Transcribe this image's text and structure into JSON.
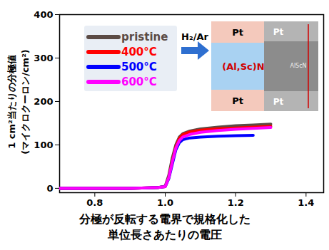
{
  "chart_data": {
    "type": "line",
    "x_label": [
      "分極が反転する電界で規格化した",
      "単位長さあたりの電圧"
    ],
    "y_label": [
      "1 cm²当たりの分極値",
      "(マイクロクーロン/cm²)"
    ],
    "xlim": [
      0.7,
      1.45
    ],
    "xticks": [
      0.8,
      {
        "value": 1,
        "label": "1.0"
      },
      1.2,
      1.4
    ],
    "ylim": [
      -10,
      400
    ],
    "yticks": [
      0,
      100,
      200,
      300,
      400
    ],
    "grid": false,
    "legend": "top-left",
    "series": [
      {
        "name": "pristine",
        "color": "#5b4b45",
        "x": [
          0.7,
          0.8,
          0.9,
          0.95,
          0.98,
          1.0,
          1.01,
          1.02,
          1.03,
          1.04,
          1.05,
          1.07,
          1.1,
          1.15,
          1.2,
          1.25,
          1.3
        ],
        "values": [
          0,
          0,
          0,
          1,
          2,
          5,
          30,
          70,
          100,
          118,
          126,
          132,
          137,
          141,
          144,
          146,
          148
        ]
      },
      {
        "name": "400°C",
        "color": "#ff0000",
        "x": [
          0.7,
          0.8,
          0.9,
          0.95,
          0.98,
          1.0,
          1.01,
          1.02,
          1.03,
          1.04,
          1.05,
          1.07,
          1.1,
          1.15,
          1.2,
          1.25,
          1.3
        ],
        "values": [
          0,
          0,
          0,
          1,
          2,
          4,
          25,
          62,
          95,
          115,
          124,
          130,
          134,
          137,
          139,
          141,
          143
        ]
      },
      {
        "name": "500°C",
        "color": "#0000ff",
        "x": [
          0.7,
          0.8,
          0.9,
          0.95,
          0.98,
          1.0,
          1.01,
          1.02,
          1.03,
          1.04,
          1.05,
          1.07,
          1.1,
          1.15,
          1.2,
          1.25
        ],
        "values": [
          0,
          0,
          0,
          1,
          2,
          4,
          22,
          55,
          88,
          105,
          112,
          116,
          118,
          120,
          121,
          122
        ]
      },
      {
        "name": "600°C",
        "color": "#ff00ff",
        "x": [
          0.7,
          0.8,
          0.9,
          0.95,
          0.98,
          1.0,
          1.01,
          1.02,
          1.03,
          1.04,
          1.05,
          1.07,
          1.1,
          1.15,
          1.2,
          1.25,
          1.3
        ],
        "values": [
          0,
          0,
          0,
          1,
          2,
          4,
          24,
          60,
          92,
          110,
          118,
          124,
          129,
          133,
          136,
          138,
          140
        ]
      }
    ],
    "annotations": {
      "arrow_label": "H₂/Ar",
      "inset_left": [
        "Pt",
        "(Al,Sc)N",
        "Pt"
      ],
      "inset_right": [
        "Pt",
        "AlScN",
        "Pt"
      ]
    }
  }
}
